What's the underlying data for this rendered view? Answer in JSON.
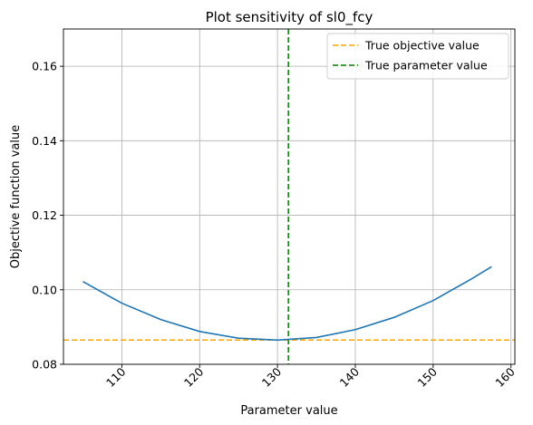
{
  "chart_data": {
    "type": "line",
    "title": "Plot sensitivity of sl0_fcy",
    "xlabel": "Parameter value",
    "ylabel": "Objective function value",
    "xlim": [
      102.5,
      160.5
    ],
    "ylim": [
      0.08,
      0.17
    ],
    "xticks": [
      110,
      120,
      130,
      140,
      150,
      160
    ],
    "xtick_labels": [
      "110",
      "120",
      "130",
      "140",
      "150",
      "160"
    ],
    "xtick_rotation": 45,
    "yticks": [
      0.08,
      0.1,
      0.12,
      0.14,
      0.16
    ],
    "ytick_labels": [
      "0.08",
      "0.10",
      "0.12",
      "0.14",
      "0.16"
    ],
    "grid": true,
    "legend_position": "top-right",
    "series": [
      {
        "color": "#1f77b4",
        "x": [
          105,
          110,
          115,
          120,
          125,
          130,
          135,
          140,
          145,
          150,
          155,
          157.5
        ],
        "y": [
          0.1022,
          0.0964,
          0.092,
          0.0888,
          0.087,
          0.0865,
          0.0872,
          0.0893,
          0.0926,
          0.0971,
          0.103,
          0.1062
        ]
      }
    ],
    "reference_lines": [
      {
        "orientation": "horizontal",
        "value": 0.0865,
        "color": "#ffa500",
        "style": "dashed",
        "label": "True objective value"
      },
      {
        "orientation": "vertical",
        "value": 131.4,
        "color": "#008000",
        "style": "dashed",
        "label": "True parameter value"
      }
    ]
  }
}
